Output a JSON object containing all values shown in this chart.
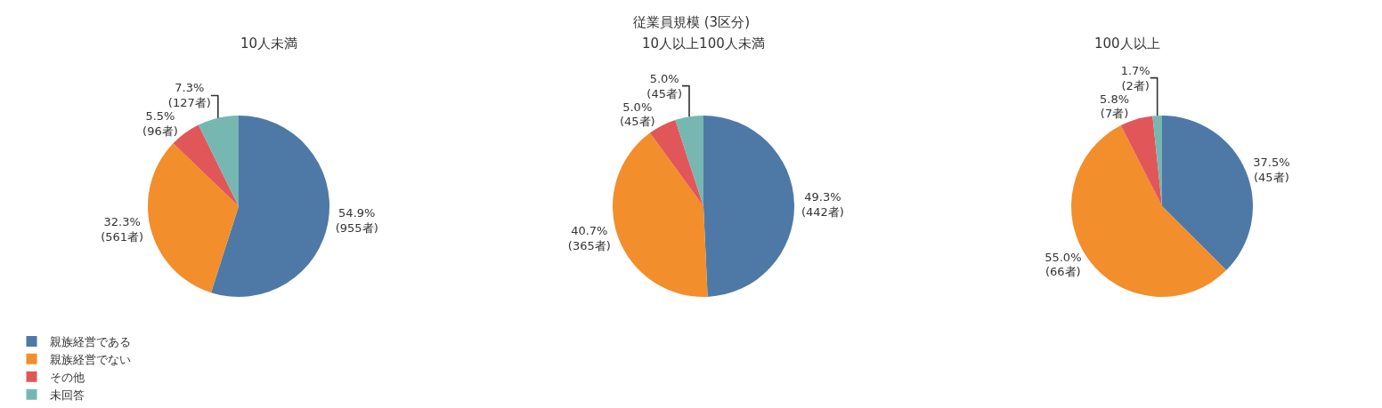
{
  "chart_data": [
    {
      "type": "pie",
      "title": "10人未満",
      "annotations": [
        "従業員規模 (3区分)"
      ],
      "legend": "bottom left",
      "categories": [
        "親族経営である",
        "親族経営でない",
        "その他",
        "未回答"
      ],
      "values": [
        955,
        561,
        96,
        127
      ],
      "colors": [
        "#4e79a7",
        "#f28e2b",
        "#e15759",
        "#76b7b2"
      ],
      "value_labels": [
        "54.9%\n(955者)",
        "32.3%\n(561者)",
        "5.5%\n(96者)",
        "7.3%\n(127者)"
      ]
    },
    {
      "type": "pie",
      "title": "10人以上100人未満",
      "categories": [
        null,
        null,
        null,
        null
      ],
      "values": [
        442,
        365,
        45,
        45
      ],
      "colors": [
        "#4e79a7",
        "#f28e2b",
        "#e15759",
        "#76b7b2"
      ],
      "value_labels": [
        "49.3%\n(442者)",
        "40.7%\n(365者)",
        "5.0%\n(45者)",
        "5.0%\n(45者)"
      ]
    },
    {
      "type": "pie",
      "title": "100人以上",
      "categories": [
        null,
        null,
        null,
        null
      ],
      "values": [
        45,
        66,
        7,
        2
      ],
      "colors": [
        "#4e79a7",
        "#f28e2b",
        "#e15759",
        "#76b7b2"
      ],
      "value_labels": [
        "37.5%\n(45者)",
        "55.0%\n(66者)",
        "5.8%\n(7者)",
        "1.7%\n(2者)"
      ]
    }
  ]
}
